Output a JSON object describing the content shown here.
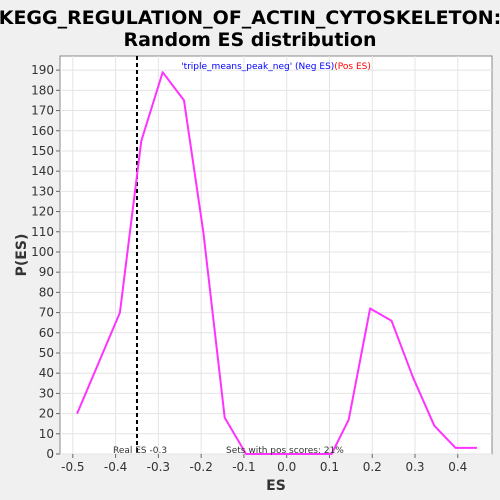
{
  "chart_data": {
    "type": "line",
    "title_line1": "KEGG_REGULATION_OF_ACTIN_CYTOSKELETON:",
    "title_line2": "Random ES distribution",
    "xlabel": "ES",
    "ylabel": "P(ES)",
    "xlim": [
      -0.53,
      0.48
    ],
    "ylim": [
      0,
      197
    ],
    "xticks": [
      "-0.5",
      "-0.4",
      "-0.3",
      "-0.2",
      "-0.1",
      "0.0",
      "0.1",
      "0.2",
      "0.3",
      "0.4"
    ],
    "yticks": [
      0,
      10,
      20,
      30,
      40,
      50,
      60,
      70,
      80,
      90,
      100,
      110,
      120,
      130,
      140,
      150,
      160,
      170,
      180,
      190
    ],
    "grid": true,
    "legend": {
      "prefix": "'triple_means_peak_neg' ",
      "neg": "(Neg ES)",
      "pos": "(Pos ES)",
      "neg_color": "#0000ff",
      "pos_color": "#ff0000",
      "placement": "top"
    },
    "series": [
      {
        "color": "#ff33ff",
        "x": [
          -0.49,
          -0.44,
          -0.39,
          -0.34,
          -0.29,
          -0.24,
          -0.195,
          -0.145,
          -0.095,
          -0.045,
          0.005,
          0.055,
          0.105,
          0.145,
          0.195,
          0.245,
          0.295,
          0.345,
          0.395,
          0.445
        ],
        "y": [
          20,
          45,
          70,
          155,
          189,
          175,
          110,
          18,
          0,
          0,
          0,
          0,
          0,
          17,
          72,
          66,
          38,
          14,
          3,
          3
        ]
      }
    ],
    "real_es": {
      "value": -0.35,
      "label": "Real ES -0.3"
    },
    "annotation": "Sets with pos scores: 21%"
  }
}
